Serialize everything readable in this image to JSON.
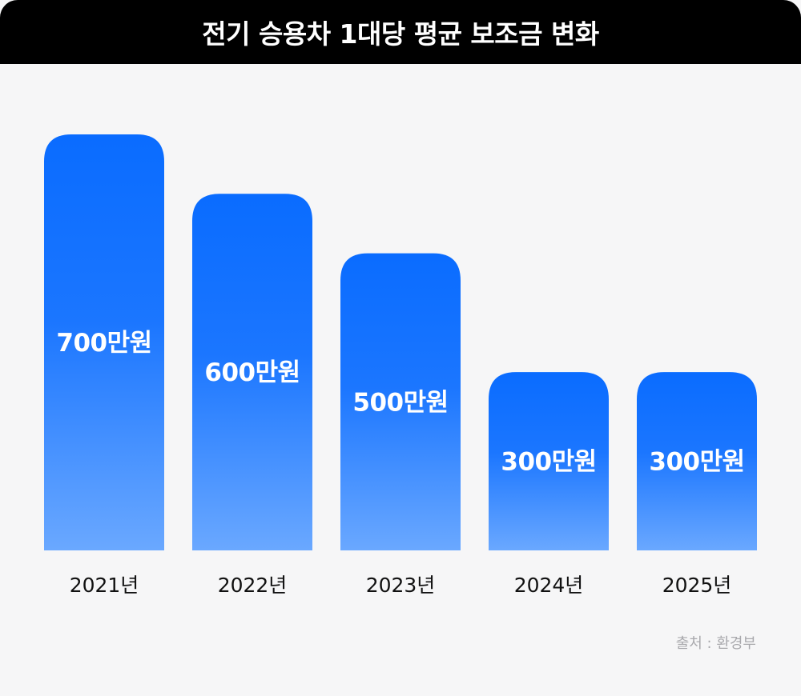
{
  "title": "전기 승용차 1대당 평균 보조금 변화",
  "source": "출처 : 환경부",
  "colors": {
    "header_bg": "#000000",
    "background": "#f6f6f7",
    "bar_top": "#0a6cff",
    "bar_bottom": "#6aa8ff"
  },
  "chart_data": {
    "type": "bar",
    "title": "전기 승용차 1대당 평균 보조금 변화",
    "categories": [
      "2021년",
      "2022년",
      "2023년",
      "2024년",
      "2025년"
    ],
    "values": [
      700,
      600,
      500,
      300,
      300
    ],
    "value_labels": [
      "700만원",
      "600만원",
      "500만원",
      "300만원",
      "300만원"
    ],
    "unit": "만원",
    "grid": false,
    "legend": "none"
  }
}
